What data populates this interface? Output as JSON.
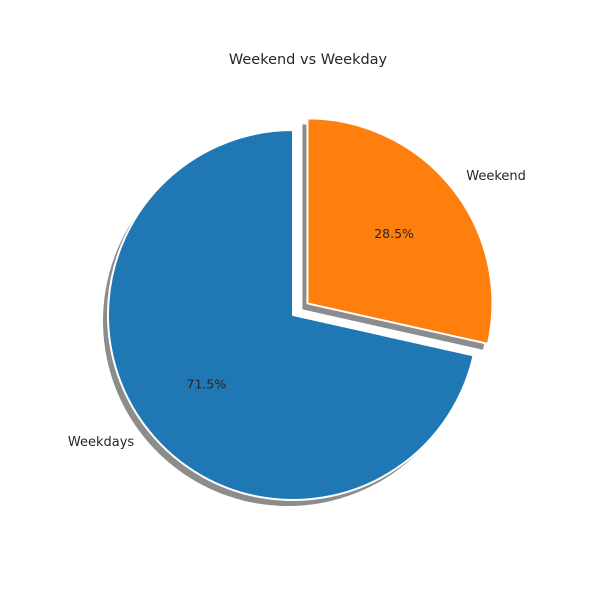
{
  "chart_data": {
    "type": "pie",
    "title": "Weekend vs Weekday",
    "slices": [
      {
        "label": "Weekdays",
        "value": 71.5,
        "pct_label": "71.5%",
        "color": "#1f77b4",
        "exploded": false
      },
      {
        "label": "Weekend",
        "value": 28.5,
        "pct_label": "28.5%",
        "color": "#ff7f0e",
        "exploded": true
      }
    ],
    "start_angle_deg": 90,
    "direction": "counterclockwise",
    "shadow": true
  }
}
